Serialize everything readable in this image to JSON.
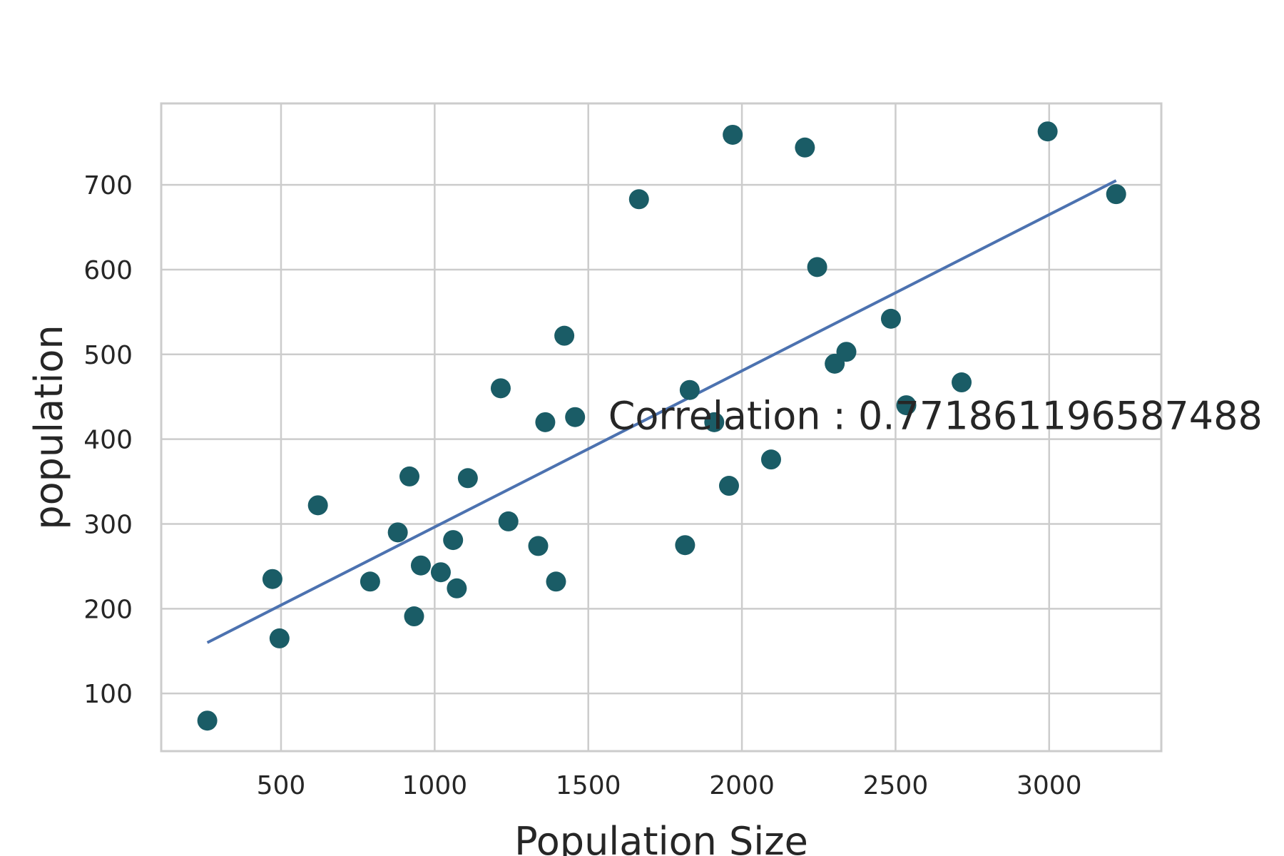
{
  "chart_data": {
    "type": "scatter",
    "title": "",
    "xlabel": "Population Size",
    "ylabel": "population",
    "xlim": [
      110,
      3365
    ],
    "ylim": [
      32,
      796
    ],
    "xticks": [
      500,
      1000,
      1500,
      2000,
      2500,
      3000
    ],
    "yticks": [
      100,
      200,
      300,
      400,
      500,
      600,
      700
    ],
    "grid": true,
    "annotation": {
      "text": "Correlation : 0.771861196587488",
      "x": 1565,
      "y": 412
    },
    "colors": {
      "points": "#1a5c66",
      "fit_line": "#4c72b0",
      "grid": "#cccccc",
      "text": "#262626"
    },
    "series": [
      {
        "type": "scatter",
        "points": [
          [
            260,
            68
          ],
          [
            472,
            235
          ],
          [
            495,
            165
          ],
          [
            620,
            322
          ],
          [
            790,
            232
          ],
          [
            880,
            290
          ],
          [
            918,
            356
          ],
          [
            933,
            191
          ],
          [
            955,
            251
          ],
          [
            1020,
            243
          ],
          [
            1060,
            281
          ],
          [
            1072,
            224
          ],
          [
            1108,
            354
          ],
          [
            1215,
            460
          ],
          [
            1240,
            303
          ],
          [
            1337,
            274
          ],
          [
            1360,
            420
          ],
          [
            1395,
            232
          ],
          [
            1422,
            522
          ],
          [
            1457,
            426
          ],
          [
            1665,
            683
          ],
          [
            1815,
            275
          ],
          [
            1830,
            458
          ],
          [
            1910,
            420
          ],
          [
            1958,
            345
          ],
          [
            1970,
            759
          ],
          [
            2095,
            376
          ],
          [
            2205,
            744
          ],
          [
            2245,
            603
          ],
          [
            2302,
            489
          ],
          [
            2340,
            503
          ],
          [
            2485,
            542
          ],
          [
            2535,
            440
          ],
          [
            2715,
            467
          ],
          [
            2995,
            763
          ],
          [
            3218,
            689
          ]
        ]
      },
      {
        "type": "line",
        "points": [
          [
            260,
            160
          ],
          [
            3218,
            705
          ]
        ]
      }
    ]
  }
}
